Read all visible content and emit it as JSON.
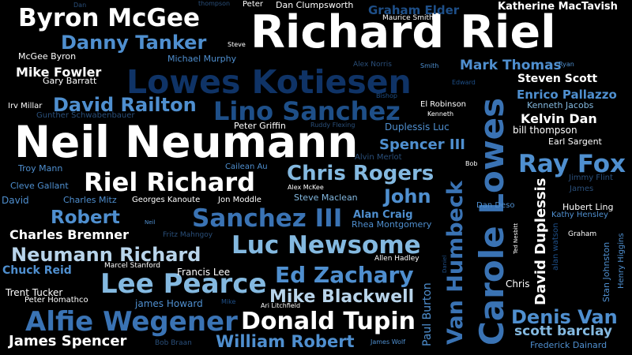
{
  "palette": {
    "white": "#ffffff",
    "light_blue": "#b8d4ea",
    "sky_blue": "#84b9e0",
    "medium_blue": "#4f8fcf",
    "blue": "#3a73b4",
    "dark_blue": "#1e4f88",
    "navy": "#0f3366",
    "muted_blue": "#2a4f7a"
  },
  "words": [
    {
      "text": "Richard Riel",
      "color": "white"
    },
    {
      "text": "Neil Neumann",
      "color": "white"
    },
    {
      "text": "Lowes Kotiesen",
      "color": "navy"
    },
    {
      "text": "Carole Lowes",
      "color": "blue"
    },
    {
      "text": "Byron McGee",
      "color": "white"
    },
    {
      "text": "Riel Richard",
      "color": "white"
    },
    {
      "text": "Sanchez III",
      "color": "blue"
    },
    {
      "text": "Lee Pearce",
      "color": "sky_blue"
    },
    {
      "text": "Alfie Wegener",
      "color": "blue"
    },
    {
      "text": "Donald Tupin",
      "color": "white"
    },
    {
      "text": "Luc Newsome",
      "color": "sky_blue"
    },
    {
      "text": "Lino Sanchez",
      "color": "dark_blue"
    },
    {
      "text": "Danny Tanker",
      "color": "medium_blue"
    },
    {
      "text": "Van Humbeck",
      "color": "blue"
    },
    {
      "text": "Ray Fox",
      "color": "medium_blue"
    },
    {
      "text": "Neumann Richard",
      "color": "light_blue"
    },
    {
      "text": "Ed Zachary",
      "color": "medium_blue"
    },
    {
      "text": "Chris Rogers",
      "color": "sky_blue"
    },
    {
      "text": "David Railton",
      "color": "medium_blue"
    },
    {
      "text": "Mike Blackwell",
      "color": "light_blue"
    },
    {
      "text": "William Robert",
      "color": "medium_blue"
    },
    {
      "text": "Denis Van",
      "color": "medium_blue"
    },
    {
      "text": "David Duplessis",
      "color": "white"
    },
    {
      "text": "Robert",
      "color": "medium_blue"
    },
    {
      "text": "John",
      "color": "medium_blue"
    },
    {
      "text": "James Spencer",
      "color": "white"
    },
    {
      "text": "Mike Fowler",
      "color": "white"
    },
    {
      "text": "Charles Bremner",
      "color": "white"
    },
    {
      "text": "Mark Thomas",
      "color": "medium_blue"
    },
    {
      "text": "scott barclay",
      "color": "sky_blue"
    },
    {
      "text": "Steven Scott",
      "color": "white"
    },
    {
      "text": "Kelvin Dan",
      "color": "white"
    },
    {
      "text": "Spencer III",
      "color": "medium_blue"
    },
    {
      "text": "Graham Elder",
      "color": "dark_blue"
    },
    {
      "text": "Enrico Pallazzo",
      "color": "medium_blue"
    },
    {
      "text": "Katherine MacTavish",
      "color": "white"
    },
    {
      "text": "Chuck Reid",
      "color": "medium_blue"
    },
    {
      "text": "Paul Burton",
      "color": "medium_blue"
    },
    {
      "text": "Alan Craig",
      "color": "medium_blue"
    },
    {
      "text": "Rhea Montgomery",
      "color": "medium_blue"
    },
    {
      "text": "Dan Clumpsworth",
      "color": "white"
    },
    {
      "text": "Duplessis Luc",
      "color": "medium_blue"
    },
    {
      "text": "Francis Lee",
      "color": "white"
    },
    {
      "text": "Frederick Dainard",
      "color": "medium_blue"
    },
    {
      "text": "Trent Tucker",
      "color": "white"
    },
    {
      "text": "Peter Griffin",
      "color": "white"
    },
    {
      "text": "Michael Murphy",
      "color": "medium_blue"
    },
    {
      "text": "Kenneth Jacobs",
      "color": "sky_blue"
    },
    {
      "text": "bill thompson",
      "color": "white"
    },
    {
      "text": "Earl Sargent",
      "color": "white"
    },
    {
      "text": "Steve Maclean",
      "color": "sky_blue"
    },
    {
      "text": "Gary Barratt",
      "color": "white"
    },
    {
      "text": "McGee Byron",
      "color": "white"
    },
    {
      "text": "Hubert Ling",
      "color": "white"
    },
    {
      "text": "Kathy Hensley",
      "color": "medium_blue"
    },
    {
      "text": "Stan Johnston",
      "color": "medium_blue"
    },
    {
      "text": "Cleve Gallant",
      "color": "medium_blue"
    },
    {
      "text": "Troy Mann",
      "color": "medium_blue"
    },
    {
      "text": "Charles Mitz",
      "color": "medium_blue"
    },
    {
      "text": "Georges Kanoute",
      "color": "white"
    },
    {
      "text": "Jon Moddle",
      "color": "white"
    },
    {
      "text": "Chris",
      "color": "white"
    },
    {
      "text": "james Howard",
      "color": "medium_blue"
    },
    {
      "text": "Peter Homathco",
      "color": "white"
    },
    {
      "text": "Irv Millar",
      "color": "white"
    },
    {
      "text": "Gunther Schwabenbauer",
      "color": "muted_blue"
    },
    {
      "text": "Alvin Merlot",
      "color": "muted_blue"
    },
    {
      "text": "Cailean Au",
      "color": "medium_blue"
    },
    {
      "text": "Dan Deso",
      "color": "medium_blue"
    },
    {
      "text": "Jimmy Flint",
      "color": "muted_blue"
    },
    {
      "text": "El Robinson",
      "color": "white"
    },
    {
      "text": "Ruddy Flexing",
      "color": "muted_blue"
    },
    {
      "text": "Fritz Mahngoy",
      "color": "muted_blue"
    },
    {
      "text": "Marcel Stanford",
      "color": "white"
    },
    {
      "text": "Allen Hadley",
      "color": "white"
    },
    {
      "text": "Alex Norris",
      "color": "muted_blue"
    },
    {
      "text": "Maurice Smith",
      "color": "white"
    },
    {
      "text": "Bob Braan",
      "color": "muted_blue"
    },
    {
      "text": "James Wolf",
      "color": "medium_blue"
    },
    {
      "text": "Ari Litchfield",
      "color": "white"
    },
    {
      "text": "Alex McKee",
      "color": "white"
    },
    {
      "text": "alan watson",
      "color": "dark_blue"
    },
    {
      "text": "Henry Higgins",
      "color": "medium_blue"
    },
    {
      "text": "Ted Nesbitt",
      "color": "white"
    },
    {
      "text": "James",
      "color": "muted_blue"
    },
    {
      "text": "Graham",
      "color": "white"
    },
    {
      "text": "David",
      "color": "medium_blue"
    },
    {
      "text": "Peter",
      "color": "white"
    },
    {
      "text": "thompson",
      "color": "muted_blue"
    },
    {
      "text": "Dan",
      "color": "muted_blue"
    },
    {
      "text": "Steve",
      "color": "white"
    },
    {
      "text": "Smith",
      "color": "medium_blue"
    },
    {
      "text": "Ryan",
      "color": "medium_blue"
    },
    {
      "text": "Edward",
      "color": "dark_blue"
    },
    {
      "text": "Bishop",
      "color": "dark_blue"
    },
    {
      "text": "Kenneth",
      "color": "white"
    },
    {
      "text": "Bob",
      "color": "white"
    },
    {
      "text": "Neil",
      "color": "medium_blue"
    },
    {
      "text": "Mike",
      "color": "dark_blue"
    },
    {
      "text": "Daniel",
      "color": "dark_blue"
    }
  ]
}
